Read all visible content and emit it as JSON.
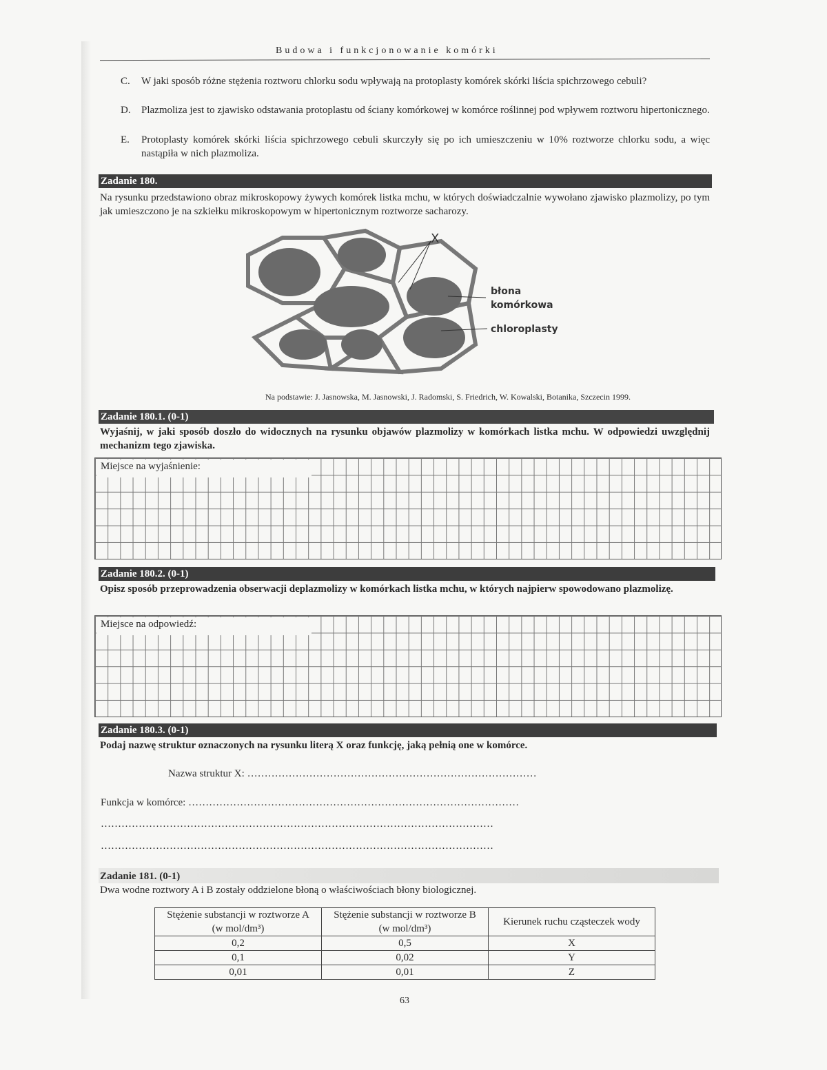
{
  "header": "Budowa i funkcjonowanie komórki",
  "items": [
    {
      "letter": "C.",
      "text": "W jaki sposób  różne stężenia roztworu chlorku sodu wpływają na protoplasty komórek skórki liścia spichrzowego cebuli?"
    },
    {
      "letter": "D.",
      "text": "Plazmoliza jest to  zjawisko odstawania protoplastu od ściany komórkowej w komórce roślinnej pod wpływem roztworu hipertonicznego."
    },
    {
      "letter": "E.",
      "text": "Protoplasty komórek skórki liścia spichrzowego  cebuli skurczyły się po ich umieszczeniu w 10% roztworze chlorku sodu, a więc nastąpiła w nich plazmoliza."
    }
  ],
  "z180": {
    "title": "Zadanie 180.",
    "text": "Na rysunku przedstawiono obraz mikroskopowy żywych komórek listka mchu, w których doświadczalnie wywołano zjawisko plazmolizy, po tym jak umieszczono je na szkiełku mikroskopowym w hipertonicznym roztworze sacharozy.",
    "figure_labels": {
      "x": "X",
      "membrane1": "błona",
      "membrane2": "komórkowa",
      "chloroplasts": "chloroplasty"
    },
    "credit": "Na podstawie: J. Jasnowska, M. Jasnowski, J. Radomski, S. Friedrich, W. Kowalski, Botanika, Szczecin 1999."
  },
  "z1801": {
    "title": "Zadanie 180.1.  (0-1)",
    "text": "Wyjaśnij, w jaki sposób doszło do widocznych na rysunku objawów plazmolizy w komórkach listka mchu. W odpowiedzi uwzględnij mechanizm tego zjawiska.",
    "box_label": "Miejsce na wyjaśnienie:"
  },
  "z1802": {
    "title": "Zadanie 180.2.  (0-1)",
    "text": "Opisz sposób przeprowadzenia obserwacji deplazmolizy w komórkach listka mchu, w których najpierw spowodowano plazmolizę.",
    "box_label": "Miejsce na odpowiedź:"
  },
  "z1803": {
    "title": "Zadanie 180.3.  (0-1)",
    "text": "Podaj nazwę struktur oznaczonych na rysunku literą X oraz funkcję, jaką pełnią one w komórce.",
    "name_label": "Nazwa struktur X: ",
    "func_label": "Funkcja w komórce: "
  },
  "z181": {
    "title": "Zadanie 181.  (0-1)",
    "text": "Dwa wodne roztwory A i B zostały oddzielone błoną o właściwościach błony biologicznej.",
    "columns": [
      "Stężenie substancji w roztworze A (w mol/dm³)",
      "Stężenie substancji w roztworze B (w mol/dm³)",
      "Kierunek ruchu cząsteczek wody"
    ],
    "rows": [
      [
        "0,2",
        "0,5",
        "X"
      ],
      [
        "0,1",
        "0,02",
        "Y"
      ],
      [
        "0,01",
        "0,01",
        "Z"
      ]
    ]
  },
  "page_number": "63"
}
